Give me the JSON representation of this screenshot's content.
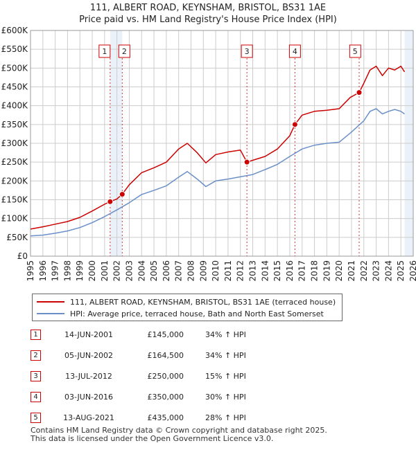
{
  "title_line1": "111, ALBERT ROAD, KEYNSHAM, BRISTOL, BS31 1AE",
  "title_line2": "Price paid vs. HM Land Registry's House Price Index (HPI)",
  "colors": {
    "property": "#cc0000",
    "hpi": "#6a8fc8",
    "grid": "#cccccc",
    "shade": "#dde7f5"
  },
  "chart_data": {
    "type": "line",
    "title": "Price paid vs. HM Land Registry's House Price Index (HPI)",
    "xlim": [
      1995,
      2026
    ],
    "ylim": [
      0,
      600000
    ],
    "x_ticks": [
      "1995",
      "1996",
      "1997",
      "1998",
      "1999",
      "2000",
      "2001",
      "2002",
      "2003",
      "2004",
      "2005",
      "2006",
      "2007",
      "2008",
      "2009",
      "2010",
      "2011",
      "2012",
      "2013",
      "2014",
      "2015",
      "2016",
      "2017",
      "2018",
      "2019",
      "2020",
      "2021",
      "2022",
      "2023",
      "2024",
      "2025",
      "2026"
    ],
    "y_ticks": [
      {
        "value": 0,
        "label": "£0"
      },
      {
        "value": 50000,
        "label": "£50K"
      },
      {
        "value": 100000,
        "label": "£100K"
      },
      {
        "value": 150000,
        "label": "£150K"
      },
      {
        "value": 200000,
        "label": "£200K"
      },
      {
        "value": 250000,
        "label": "£250K"
      },
      {
        "value": 300000,
        "label": "£300K"
      },
      {
        "value": 350000,
        "label": "£350K"
      },
      {
        "value": 400000,
        "label": "£400K"
      },
      {
        "value": 450000,
        "label": "£450K"
      },
      {
        "value": 500000,
        "label": "£500K"
      },
      {
        "value": 550000,
        "label": "£550K"
      },
      {
        "value": 600000,
        "label": "£600K"
      }
    ],
    "series": [
      {
        "name": "111, ALBERT ROAD, KEYNSHAM, BRISTOL, BS31 1AE (terraced house)",
        "x": [
          1995,
          1996,
          1997,
          1998,
          1999,
          2000,
          2001,
          2001.45,
          2002,
          2002.43,
          2003,
          2004,
          2005,
          2006,
          2007,
          2007.7,
          2008.5,
          2009.2,
          2010,
          2011,
          2012,
          2012.53,
          2013,
          2014,
          2015,
          2016,
          2016.42,
          2017,
          2018,
          2019,
          2020,
          2020.9,
          2021.62,
          2022,
          2022.5,
          2023,
          2023.5,
          2024,
          2024.5,
          2025,
          2025.3
        ],
        "values": [
          72000,
          78000,
          85000,
          92000,
          103000,
          120000,
          138000,
          145000,
          152000,
          164500,
          190000,
          222000,
          235000,
          250000,
          285000,
          300000,
          275000,
          248000,
          270000,
          277000,
          282000,
          250000,
          255000,
          265000,
          285000,
          320000,
          350000,
          375000,
          385000,
          388000,
          392000,
          422000,
          435000,
          460000,
          495000,
          505000,
          480000,
          500000,
          495000,
          505000,
          490000
        ]
      },
      {
        "name": "HPI: Average price, terraced house, Bath and North East Somerset",
        "x": [
          1995,
          1996,
          1997,
          1998,
          1999,
          2000,
          2001,
          2002,
          2003,
          2004,
          2005,
          2006,
          2007,
          2007.7,
          2008.5,
          2009.2,
          2010,
          2011,
          2012,
          2013,
          2014,
          2015,
          2016,
          2017,
          2018,
          2019,
          2020,
          2021,
          2022,
          2022.5,
          2023,
          2023.5,
          2024,
          2024.5,
          2025,
          2025.3
        ],
        "values": [
          54000,
          56000,
          61000,
          67000,
          76000,
          89000,
          105000,
          123000,
          142000,
          164000,
          175000,
          187000,
          210000,
          225000,
          205000,
          185000,
          200000,
          205000,
          211000,
          217000,
          230000,
          244000,
          265000,
          285000,
          295000,
          300000,
          303000,
          330000,
          360000,
          385000,
          392000,
          378000,
          385000,
          390000,
          385000,
          378000
        ]
      }
    ],
    "sales": [
      {
        "n": "1",
        "x": 2001.45,
        "value": 145000
      },
      {
        "n": "2",
        "x": 2002.43,
        "value": 164500
      },
      {
        "n": "3",
        "x": 2012.53,
        "value": 250000
      },
      {
        "n": "4",
        "x": 2016.42,
        "value": 350000
      },
      {
        "n": "5",
        "x": 2021.62,
        "value": 435000
      }
    ]
  },
  "legend": {
    "property": "111, ALBERT ROAD, KEYNSHAM, BRISTOL, BS31 1AE (terraced house)",
    "hpi": "HPI: Average price, terraced house, Bath and North East Somerset"
  },
  "sales_table": [
    {
      "n": "1",
      "date": "14-JUN-2001",
      "price": "£145,000",
      "hpi": "34% ↑ HPI"
    },
    {
      "n": "2",
      "date": "05-JUN-2002",
      "price": "£164,500",
      "hpi": "34% ↑ HPI"
    },
    {
      "n": "3",
      "date": "13-JUL-2012",
      "price": "£250,000",
      "hpi": "15% ↑ HPI"
    },
    {
      "n": "4",
      "date": "03-JUN-2016",
      "price": "£350,000",
      "hpi": "30% ↑ HPI"
    },
    {
      "n": "5",
      "date": "13-AUG-2021",
      "price": "£435,000",
      "hpi": "28% ↑ HPI"
    }
  ],
  "footer": {
    "line1": "Contains HM Land Registry data © Crown copyright and database right 2025.",
    "line2": "This data is licensed under the Open Government Licence v3.0."
  }
}
